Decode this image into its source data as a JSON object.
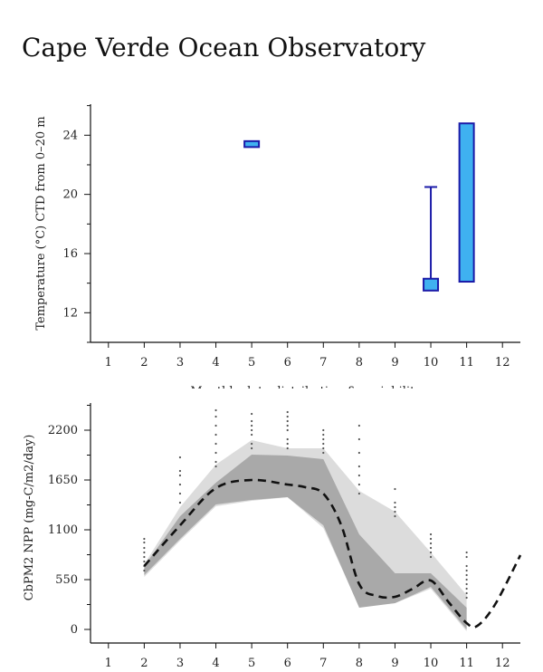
{
  "page": {
    "title": "Cape Verde Ocean Observatory"
  },
  "chart_data": [
    {
      "type": "boxplot",
      "ylabel": "Temperature (°C) CTD from 0–20 m",
      "xlabel": "Monthly data distribution & variability",
      "x_ticks": [
        "1",
        "2",
        "3",
        "4",
        "5",
        "6",
        "7",
        "8",
        "9",
        "10",
        "11",
        "12"
      ],
      "y_ticks": [
        "12",
        "16",
        "20",
        "24"
      ],
      "xlim": [
        0.5,
        12.5
      ],
      "ylim": [
        10,
        26.1
      ],
      "colors": {
        "box_fill": "#3fb1f0",
        "box_edge": "#1a1aa8"
      },
      "boxes": [
        {
          "month": 5,
          "whisker_low": 23.2,
          "q1": 23.2,
          "q3": 23.6,
          "whisker_high": 23.6
        },
        {
          "month": 10,
          "whisker_low": 13.5,
          "q1": 13.5,
          "q3": 14.3,
          "whisker_high": 20.5
        },
        {
          "month": 11,
          "whisker_low": 14.1,
          "q1": 14.1,
          "q3": 24.8,
          "whisker_high": 24.8
        }
      ]
    },
    {
      "type": "area",
      "ylabel": "CbPM2 NPP (mg-C/m2/day)",
      "x_ticks": [
        "1",
        "2",
        "3",
        "4",
        "5",
        "6",
        "7",
        "8",
        "9",
        "10",
        "11",
        "12"
      ],
      "y_ticks": [
        "0",
        "550",
        "1100",
        "1650",
        "2200"
      ],
      "xlim": [
        0.5,
        12.5
      ],
      "ylim": [
        -150,
        2500
      ],
      "colors": {
        "outer_band": "#dcdcdc",
        "inner_band": "#a9a9a9",
        "mean_line": "#111111",
        "points": "#555555"
      },
      "outer_band": {
        "x": [
          2,
          3,
          4,
          5,
          6,
          7,
          8,
          9,
          10,
          11
        ],
        "upper": [
          720,
          1350,
          1820,
          2090,
          2000,
          2000,
          1530,
          1300,
          850,
          380
        ],
        "lower": [
          580,
          980,
          1360,
          1420,
          1460,
          1120,
          250,
          290,
          450,
          -20
        ]
      },
      "inner_band": {
        "x": [
          2,
          3,
          4,
          5,
          6,
          7,
          8,
          9,
          10,
          11
        ],
        "upper": [
          700,
          1250,
          1620,
          1930,
          1920,
          1880,
          1050,
          620,
          620,
          240
        ],
        "lower": [
          600,
          1000,
          1380,
          1430,
          1460,
          1150,
          240,
          290,
          470,
          0
        ]
      },
      "mean": {
        "x": [
          2,
          3,
          4,
          5,
          6,
          6.5,
          7,
          7.5,
          8,
          8.5,
          9,
          9.5,
          10,
          10.5,
          11,
          11.3,
          11.8,
          12.5
        ],
        "y": [
          700,
          1150,
          1560,
          1650,
          1600,
          1570,
          1500,
          1150,
          500,
          370,
          360,
          450,
          540,
          300,
          70,
          40,
          280,
          820
        ]
      },
      "points": [
        {
          "x": 2,
          "ys": [
            650,
            700,
            750,
            800,
            850,
            900,
            960,
            1000
          ]
        },
        {
          "x": 3,
          "ys": [
            1400,
            1500,
            1600,
            1700,
            1750,
            1900
          ]
        },
        {
          "x": 4,
          "ys": [
            1800,
            1850,
            1950,
            2050,
            2150,
            2250,
            2350,
            2420
          ]
        },
        {
          "x": 5,
          "ys": [
            2000,
            2050,
            2150,
            2200,
            2250,
            2300,
            2380
          ]
        },
        {
          "x": 6,
          "ys": [
            2000,
            2050,
            2100,
            2200,
            2250,
            2300,
            2350,
            2400
          ]
        },
        {
          "x": 7,
          "ys": [
            1950,
            2000,
            2050,
            2100,
            2150,
            2200
          ]
        },
        {
          "x": 8,
          "ys": [
            1500,
            1600,
            1700,
            1800,
            1950,
            2100,
            2250
          ]
        },
        {
          "x": 9,
          "ys": [
            1250,
            1300,
            1350,
            1400,
            1550
          ]
        },
        {
          "x": 10,
          "ys": [
            800,
            850,
            900,
            950,
            1000,
            1050
          ]
        },
        {
          "x": 11,
          "ys": [
            350,
            400,
            450,
            500,
            550,
            600,
            650,
            700,
            800,
            850
          ]
        }
      ]
    }
  ]
}
